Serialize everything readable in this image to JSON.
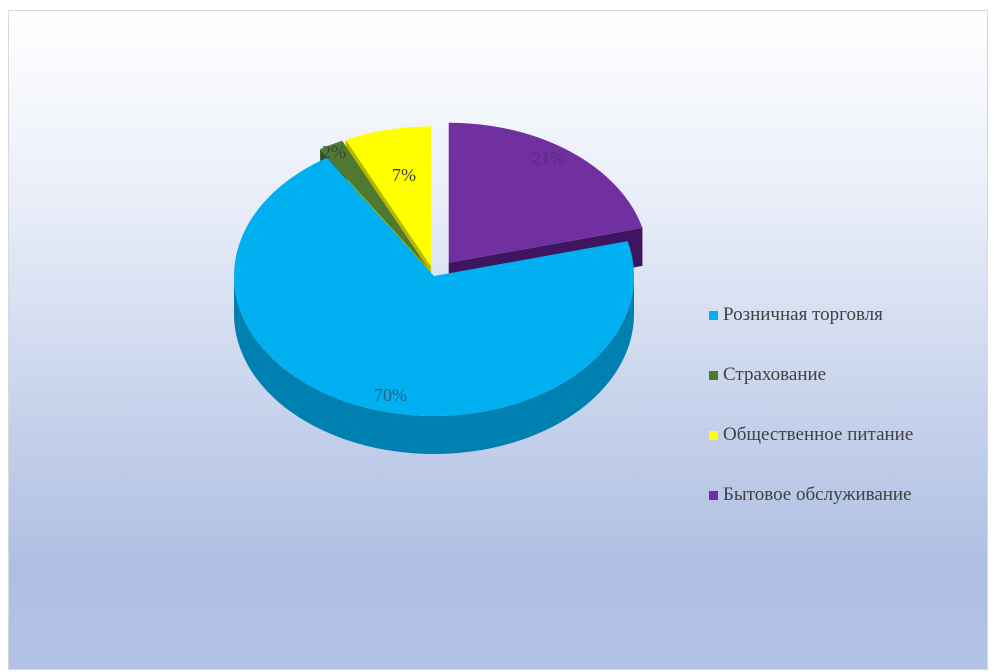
{
  "chart_data": {
    "type": "pie",
    "style": "3d-exploded",
    "categories": [
      "Розничная торговля",
      "Страхование",
      "Общественное питание",
      "Бытовое обслуживание"
    ],
    "values": [
      70,
      2,
      7,
      21
    ],
    "labels": [
      "70%",
      "2%",
      "7%",
      "21%"
    ],
    "colors": [
      "#00b0f0",
      "#4e7a2f",
      "#ffff00",
      "#7030a0"
    ],
    "side_colors": [
      "#0080b0",
      "#33501e",
      "#b8b800",
      "#3e1660"
    ],
    "legend_position": "right",
    "title": ""
  }
}
